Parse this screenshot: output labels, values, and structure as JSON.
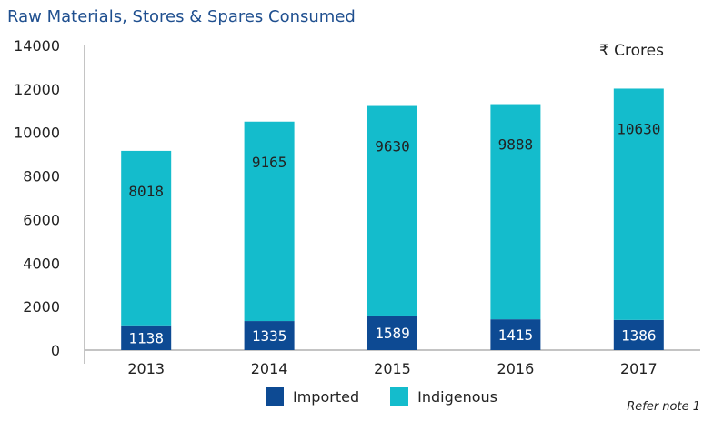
{
  "chart_data": {
    "type": "bar",
    "stacked": true,
    "title": "Raw Materials, Stores & Spares Consumed",
    "unit_label": "₹ Crores",
    "categories": [
      "2013",
      "2014",
      "2015",
      "2016",
      "2017"
    ],
    "series": [
      {
        "name": "Imported",
        "values": [
          1138,
          1335,
          1589,
          1415,
          1386
        ],
        "color": "#0d4a93"
      },
      {
        "name": "Indigenous",
        "values": [
          8018,
          9165,
          9630,
          9888,
          10630
        ],
        "color": "#14bccc"
      }
    ],
    "ylim": [
      0,
      14000
    ],
    "yticks": [
      "0",
      "2000",
      "4000",
      "6000",
      "8000",
      "10000",
      "12000",
      "14000"
    ],
    "grid": false,
    "legend_position": "bottom",
    "note": "Refer note 1"
  }
}
